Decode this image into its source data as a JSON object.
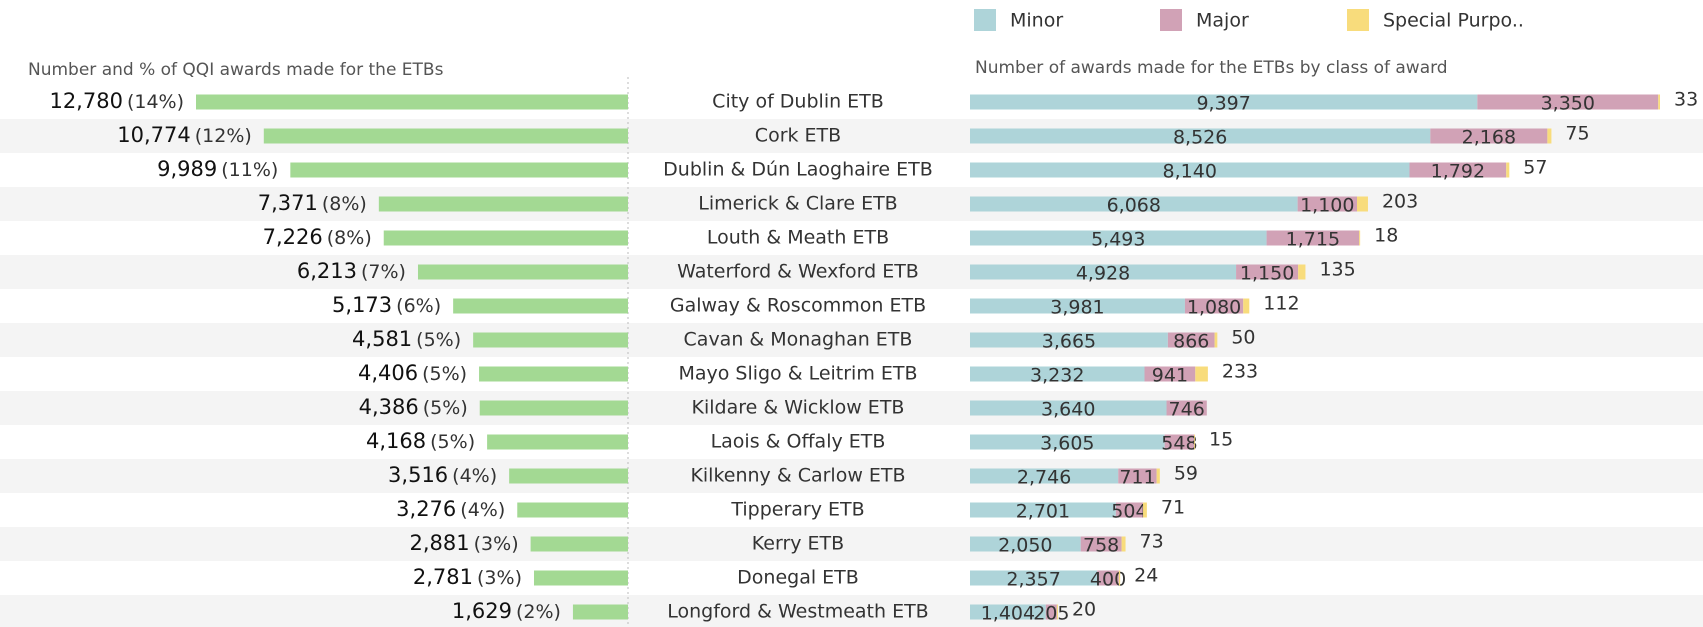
{
  "chart_data": [
    {
      "type": "hbar",
      "title": "Number and % of QQI awards made for the ETBs",
      "color": "#a3d993",
      "categories": [
        "City of Dublin ETB",
        "Cork ETB",
        "Dublin & Dún Laoghaire ETB",
        "Limerick & Clare ETB",
        "Louth & Meath ETB",
        "Waterford & Wexford ETB",
        "Galway & Roscommon ETB",
        "Cavan & Monaghan ETB",
        "Mayo Sligo & Leitrim ETB",
        "Kildare & Wicklow ETB",
        "Laois & Offaly ETB",
        "Kilkenny & Carlow ETB",
        "Tipperary ETB",
        "Kerry ETB",
        "Donegal ETB",
        "Longford & Westmeath ETB"
      ],
      "values": [
        12780,
        10774,
        9989,
        7371,
        7226,
        6213,
        5173,
        4581,
        4406,
        4386,
        4168,
        3516,
        3276,
        2881,
        2781,
        1629
      ],
      "value_labels": [
        "12,780",
        "10,774",
        "9,989",
        "7,371",
        "7,226",
        "6,213",
        "5,173",
        "4,581",
        "4,406",
        "4,386",
        "4,168",
        "3,516",
        "3,276",
        "2,881",
        "2,781",
        "1,629"
      ],
      "percents": [
        14,
        12,
        11,
        8,
        8,
        7,
        6,
        5,
        5,
        5,
        5,
        4,
        4,
        3,
        3,
        2
      ],
      "percent_labels": [
        "(14%)",
        "(12%)",
        "(11%)",
        "(8%)",
        "(8%)",
        "(7%)",
        "(6%)",
        "(5%)",
        "(5%)",
        "(5%)",
        "(5%)",
        "(4%)",
        "(4%)",
        "(3%)",
        "(3%)",
        "(2%)"
      ]
    },
    {
      "type": "stacked_hbar",
      "title": "Number of awards made for the ETBs by class of award",
      "legend": "top",
      "series": [
        {
          "name": "Minor",
          "color": "#aed4d9",
          "values": [
            9397,
            8526,
            8140,
            6068,
            5493,
            4928,
            3981,
            3665,
            3232,
            3640,
            3605,
            2746,
            2701,
            2050,
            2357,
            1404
          ],
          "value_labels": [
            "9,397",
            "8,526",
            "8,140",
            "6,068",
            "5,493",
            "4,928",
            "3,981",
            "3,665",
            "3,232",
            "3,640",
            "3,605",
            "2,746",
            "2,701",
            "2,050",
            "2,357",
            "1,404"
          ]
        },
        {
          "name": "Major",
          "color": "#d1a2b6",
          "values": [
            3350,
            2168,
            1792,
            1100,
            1715,
            1150,
            1080,
            866,
            941,
            746,
            548,
            711,
            504,
            758,
            400,
            205
          ],
          "value_labels": [
            "3,350",
            "2,168",
            "1,792",
            "1,100",
            "1,715",
            "1,150",
            "1,080",
            "866",
            "941",
            "746",
            "548",
            "711",
            "504",
            "758",
            "400",
            "205"
          ]
        },
        {
          "name": "Special Purpo..",
          "color": "#f8dc7c",
          "values": [
            33,
            75,
            57,
            203,
            18,
            135,
            112,
            50,
            233,
            null,
            15,
            59,
            71,
            73,
            24,
            20
          ]
        }
      ]
    }
  ]
}
